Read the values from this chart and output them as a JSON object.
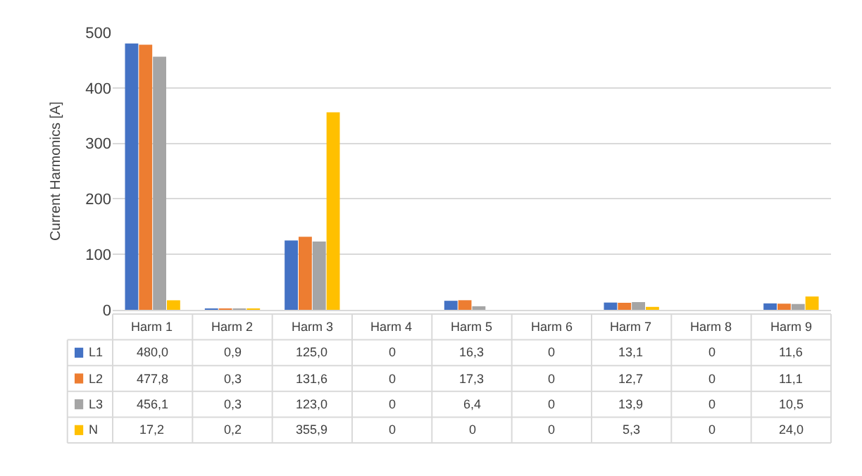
{
  "chart_data": {
    "type": "bar",
    "ylabel": "Current Harmonics [A]",
    "categories": [
      "Harm 1",
      "Harm 2",
      "Harm 3",
      "Harm 4",
      "Harm 5",
      "Harm 6",
      "Harm 7",
      "Harm 8",
      "Harm 9"
    ],
    "series": [
      {
        "name": "L1",
        "color": "#4472c4",
        "values": [
          480.0,
          0.9,
          125.0,
          0,
          16.3,
          0,
          13.1,
          0,
          11.6
        ],
        "value_labels": [
          "480,0",
          "0,9",
          "125,0",
          "0",
          "16,3",
          "0",
          "13,1",
          "0",
          "11,6"
        ]
      },
      {
        "name": "L2",
        "color": "#ed7d31",
        "values": [
          477.8,
          0.3,
          131.6,
          0,
          17.3,
          0,
          12.7,
          0,
          11.1
        ],
        "value_labels": [
          "477,8",
          "0,3",
          "131,6",
          "0",
          "17,3",
          "0",
          "12,7",
          "0",
          "11,1"
        ]
      },
      {
        "name": "L3",
        "color": "#a5a5a5",
        "values": [
          456.1,
          0.3,
          123.0,
          0,
          6.4,
          0,
          13.9,
          0,
          10.5
        ],
        "value_labels": [
          "456,1",
          "0,3",
          "123,0",
          "0",
          "6,4",
          "0",
          "13,9",
          "0",
          "10,5"
        ]
      },
      {
        "name": "N",
        "color": "#ffc000",
        "values": [
          17.2,
          0.2,
          355.9,
          0,
          0,
          0,
          5.3,
          0,
          24.0
        ],
        "value_labels": [
          "17,2",
          "0,2",
          "355,9",
          "0",
          "0",
          "0",
          "5,3",
          "0",
          "24,0"
        ]
      }
    ],
    "ylim": [
      0,
      500
    ],
    "yticks": [
      0,
      100,
      200,
      300,
      400,
      500
    ],
    "grid": "y",
    "legend": "bottom left"
  }
}
